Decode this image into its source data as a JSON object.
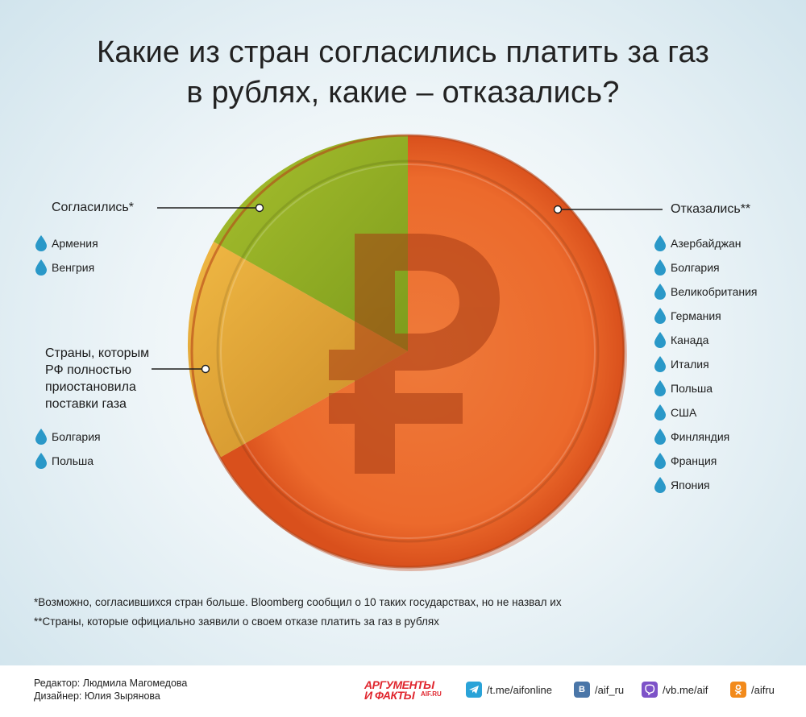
{
  "title": {
    "line1": "Какие из стран согласились платить за газ",
    "line2": "в рублях, какие – отказались?"
  },
  "agreed": {
    "heading": "Согласились*",
    "countries": [
      "Армения",
      "Венгрия"
    ]
  },
  "stopped": {
    "heading_lines": [
      "Страны, которым",
      "РФ полностью",
      "приостановила",
      "поставки газа"
    ],
    "countries": [
      "Болгария",
      "Польша"
    ]
  },
  "refused": {
    "heading": "Отказались**",
    "countries": [
      "Азербайджан",
      "Болгария",
      "Великобритания",
      "Германия",
      "Канада",
      "Италия",
      "Польша",
      "США",
      "Финляндия",
      "Франция",
      "Япония"
    ]
  },
  "notes": {
    "note1": "*Возможно, согласившихся стран больше. Bloomberg сообщил о 10 таких государствах, но не назвал их",
    "note2": "**Страны, которые официально заявили о своем отказе платить за газ в рублях"
  },
  "footer": {
    "editor": "Редактор: Людмила Магомедова",
    "designer": "Дизайнер: Юлия Зырянова",
    "logo_line1": "АРГУМЕНТЫ",
    "logo_line2": "И ФАКТЫ",
    "logo_site": "AIF.RU",
    "telegram": "/t.me/aifonline",
    "vk": "/aif_ru",
    "viber": "/vb.me/aif",
    "ok": "/aifru"
  },
  "colors": {
    "agreed": "#8fae22",
    "stopped": "#e6a83a",
    "refused": "#e65a26",
    "drop": "#2a98c8"
  }
}
